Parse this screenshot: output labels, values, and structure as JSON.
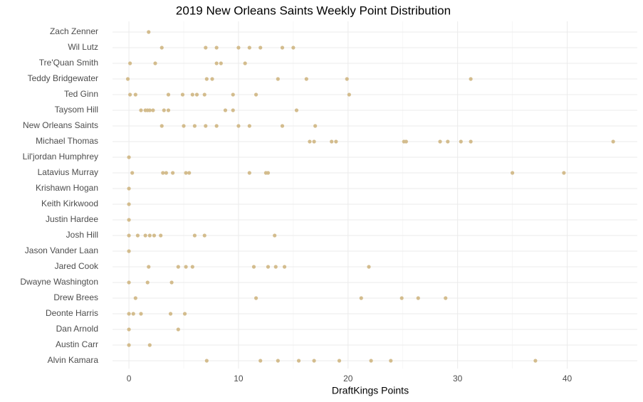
{
  "chart_data": {
    "type": "strip",
    "title": "2019 New Orleans Saints Weekly Point Distribution",
    "x_label": "DraftKings Points",
    "color": "#d3bc8d",
    "grid": true,
    "xlim": [
      -1.5,
      46.4
    ],
    "xticks": [
      0,
      10,
      20,
      30,
      40
    ],
    "categories": [
      "Zach Zenner",
      "Wil Lutz",
      "Tre'Quan Smith",
      "Teddy Bridgewater",
      "Ted Ginn",
      "Taysom Hill",
      "New Orleans Saints",
      "Michael Thomas",
      "Lil'jordan Humphrey",
      "Latavius Murray",
      "Krishawn Hogan",
      "Keith Kirkwood",
      "Justin Hardee",
      "Josh Hill",
      "Jason Vander Laan",
      "Jared Cook",
      "Dwayne Washington",
      "Drew Brees",
      "Deonte Harris",
      "Dan Arnold",
      "Austin Carr",
      "Alvin Kamara"
    ],
    "values": [
      [
        1.8
      ],
      [
        3,
        7,
        8,
        10,
        11,
        12,
        14,
        15
      ],
      [
        0.1,
        2.4,
        8,
        8.4,
        10.6
      ],
      [
        -0.1,
        7.1,
        7.6,
        13.6,
        16.2,
        19.9,
        31.2
      ],
      [
        0.1,
        0.6,
        3.6,
        4.9,
        5.8,
        6.2,
        6.9,
        9.5,
        11.6,
        20.1
      ],
      [
        1.1,
        1.5,
        1.7,
        1.9,
        2.2,
        3.2,
        3.6,
        8.8,
        9.5,
        15.3
      ],
      [
        3,
        5,
        6,
        7,
        8,
        10,
        11,
        14,
        17
      ],
      [
        16.5,
        16.9,
        18.5,
        18.9,
        25.1,
        25.3,
        28.4,
        29.1,
        30.3,
        31.2,
        44.2
      ],
      [
        0
      ],
      [
        0.3,
        3.1,
        3.4,
        4,
        5.2,
        5.5,
        11,
        12.5,
        12.7,
        35,
        39.7
      ],
      [
        0
      ],
      [
        0
      ],
      [
        0
      ],
      [
        0,
        0.8,
        1.5,
        1.9,
        2.3,
        2.9,
        6,
        6.9,
        13.3
      ],
      [
        0
      ],
      [
        1.8,
        4.5,
        5.2,
        5.8,
        11.4,
        12.7,
        13.4,
        14.2,
        21.9
      ],
      [
        0,
        1.7,
        3.9
      ],
      [
        0.6,
        11.6,
        21.2,
        24.9,
        26.4,
        28.9
      ],
      [
        0,
        0.4,
        1.1,
        3.8,
        5.1
      ],
      [
        0,
        4.5
      ],
      [
        0,
        1.9
      ],
      [
        7.1,
        12,
        13.6,
        15.5,
        16.9,
        19.2,
        22.1,
        23.9,
        37.1
      ]
    ]
  }
}
